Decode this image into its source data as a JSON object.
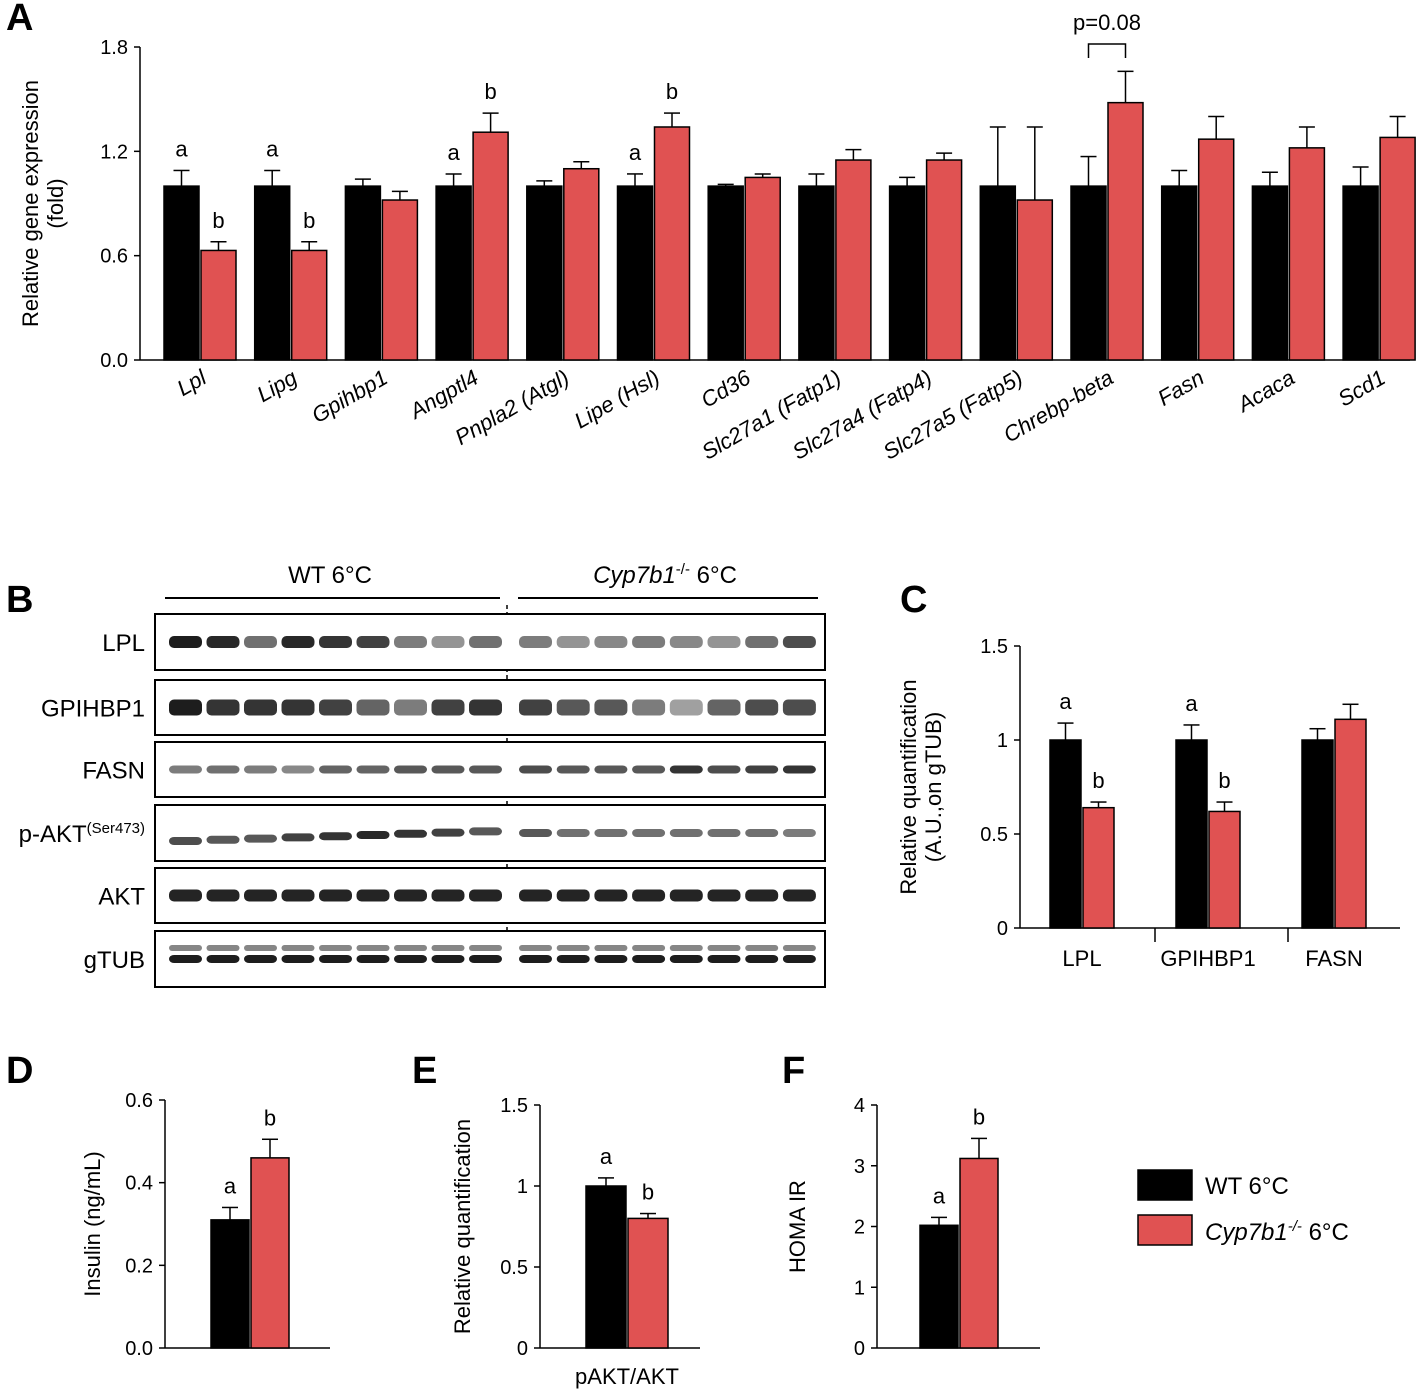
{
  "panels": {
    "A": "A",
    "B": "B",
    "C": "C",
    "D": "D",
    "E": "E",
    "F": "F"
  },
  "colors": {
    "wt": "#000000",
    "ko": "#e05252"
  },
  "legend": {
    "wt_label": "WT 6°C",
    "ko_gene": "Cyp7b1",
    "ko_sup": "-/-",
    "ko_temp": " 6°C"
  },
  "blot": {
    "group_wt": "WT 6°C",
    "group_ko_gene": "Cyp7b1",
    "group_ko_sup": "-/-",
    "group_ko_temp": " 6°C",
    "rows": [
      "LPL",
      "GPIHBP1",
      "FASN",
      "p-AKT",
      "AKT",
      "gTUB"
    ],
    "pakt_sup": "(Ser473)"
  },
  "chart_data": [
    {
      "id": "A",
      "type": "bar",
      "ylabel": "Relative gene expression (fold)",
      "ylim": [
        0,
        1.8
      ],
      "yticks": [
        "0.0",
        "0.6",
        "1.2",
        "1.8"
      ],
      "categories": [
        "Lpl",
        "Lipg",
        "Gpihbp1",
        "Angptl4",
        "Pnpla2 (Atgl)",
        "Lipe (Hsl)",
        "Cd36",
        "Slc27a1 (Fatp1)",
        "Slc27a4 (Fatp4)",
        "Slc27a5 (Fatp5)",
        "Chrebp-beta",
        "Fasn",
        "Acaca",
        "Scd1"
      ],
      "series": [
        {
          "name": "WT 6°C",
          "values": [
            1.0,
            1.0,
            1.0,
            1.0,
            1.0,
            1.0,
            1.0,
            1.0,
            1.0,
            1.0,
            1.0,
            1.0,
            1.0,
            1.0
          ],
          "errors": [
            0.09,
            0.09,
            0.04,
            0.07,
            0.03,
            0.07,
            0.01,
            0.07,
            0.05,
            0.34,
            0.17,
            0.09,
            0.08,
            0.11
          ]
        },
        {
          "name": "Cyp7b1-/- 6°C",
          "values": [
            0.63,
            0.63,
            0.92,
            1.31,
            1.1,
            1.34,
            1.05,
            1.15,
            1.15,
            0.92,
            1.48,
            1.27,
            1.22,
            1.28
          ],
          "errors": [
            0.05,
            0.05,
            0.05,
            0.11,
            0.04,
            0.08,
            0.02,
            0.06,
            0.04,
            0.42,
            0.18,
            0.13,
            0.12,
            0.12
          ]
        }
      ],
      "sig_labels": [
        [
          "a",
          "b"
        ],
        [
          "a",
          "b"
        ],
        [
          "",
          ""
        ],
        [
          "a",
          "b"
        ],
        [
          "",
          ""
        ],
        [
          "a",
          "b"
        ],
        [
          "",
          ""
        ],
        [
          "",
          ""
        ],
        [
          "",
          ""
        ],
        [
          "",
          ""
        ],
        [
          "",
          ""
        ],
        [
          "",
          ""
        ],
        [
          "",
          ""
        ],
        [
          "",
          ""
        ]
      ],
      "annotation": "p=0.08"
    },
    {
      "id": "C",
      "type": "bar",
      "ylabel": "Relative quantification (A.U.,on gTUB)",
      "ylim": [
        0,
        1.5
      ],
      "yticks": [
        "0",
        "0.5",
        "1",
        "1.5"
      ],
      "categories": [
        "LPL",
        "GPIHBP1",
        "FASN"
      ],
      "series": [
        {
          "name": "WT 6°C",
          "values": [
            1.0,
            1.0,
            1.0
          ],
          "errors": [
            0.09,
            0.08,
            0.06
          ]
        },
        {
          "name": "Cyp7b1-/- 6°C",
          "values": [
            0.64,
            0.62,
            1.11
          ],
          "errors": [
            0.03,
            0.05,
            0.08
          ]
        }
      ],
      "sig_labels": [
        [
          "a",
          "b"
        ],
        [
          "a",
          "b"
        ],
        [
          "",
          ""
        ]
      ]
    },
    {
      "id": "D",
      "type": "bar",
      "ylabel": "Insulin (ng/mL)",
      "ylim": [
        0,
        0.6
      ],
      "yticks": [
        "0.0",
        "0.2",
        "0.4",
        "0.6"
      ],
      "categories": [
        ""
      ],
      "series": [
        {
          "name": "WT 6°C",
          "values": [
            0.31
          ],
          "errors": [
            0.03
          ]
        },
        {
          "name": "Cyp7b1-/- 6°C",
          "values": [
            0.46
          ],
          "errors": [
            0.045
          ]
        }
      ],
      "sig_labels": [
        [
          "a",
          "b"
        ]
      ]
    },
    {
      "id": "E",
      "type": "bar",
      "ylabel": "Relative quantification",
      "ylim": [
        0,
        1.5
      ],
      "yticks": [
        "0",
        "0.5",
        "1",
        "1.5"
      ],
      "categories": [
        "pAKT/AKT"
      ],
      "series": [
        {
          "name": "WT 6°C",
          "values": [
            1.0
          ],
          "errors": [
            0.05
          ]
        },
        {
          "name": "Cyp7b1-/- 6°C",
          "values": [
            0.8
          ],
          "errors": [
            0.03
          ]
        }
      ],
      "sig_labels": [
        [
          "a",
          "b"
        ]
      ]
    },
    {
      "id": "F",
      "type": "bar",
      "ylabel": "HOMA IR",
      "ylim": [
        0,
        4
      ],
      "yticks": [
        "0",
        "1",
        "2",
        "3",
        "4"
      ],
      "categories": [
        ""
      ],
      "series": [
        {
          "name": "WT 6°C",
          "values": [
            2.02
          ],
          "errors": [
            0.13
          ]
        },
        {
          "name": "Cyp7b1-/- 6°C",
          "values": [
            3.12
          ],
          "errors": [
            0.33
          ]
        }
      ],
      "sig_labels": [
        [
          "a",
          "b"
        ]
      ]
    }
  ]
}
